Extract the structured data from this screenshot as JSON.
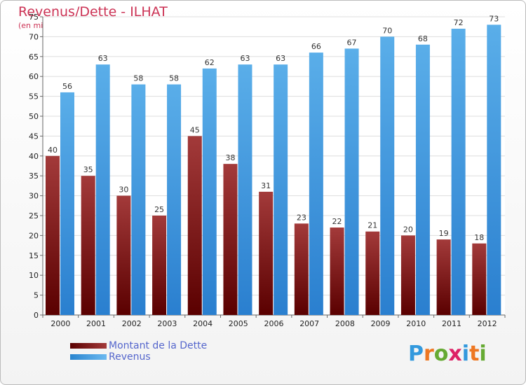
{
  "chart_data": {
    "type": "bar",
    "title": "Revenus/Dette - ILHAT",
    "subtitle": "(en milliers d'€)",
    "categories": [
      "2000",
      "2001",
      "2002",
      "2003",
      "2004",
      "2005",
      "2006",
      "2007",
      "2008",
      "2009",
      "2010",
      "2011",
      "2012"
    ],
    "series": [
      {
        "name": "Montant de la Dette",
        "values": [
          40,
          35,
          30,
          25,
          45,
          38,
          31,
          23,
          22,
          21,
          20,
          19,
          18
        ],
        "color": "#8b1a1a"
      },
      {
        "name": "Revenus",
        "values": [
          56,
          63,
          58,
          58,
          62,
          63,
          63,
          66,
          67,
          70,
          68,
          72,
          73
        ],
        "color": "#4aa3e8"
      }
    ],
    "ylim": [
      0,
      75
    ],
    "yticks": [
      0,
      5,
      10,
      15,
      20,
      25,
      30,
      35,
      40,
      45,
      50,
      55,
      60,
      65,
      70,
      75
    ],
    "grid": true,
    "legend": "bottom-left"
  },
  "logo": {
    "text": "Proxiti",
    "letters": [
      {
        "ch": "P",
        "color": "#3399dd"
      },
      {
        "ch": "r",
        "color": "#ee7722"
      },
      {
        "ch": "o",
        "color": "#66aa33"
      },
      {
        "ch": "x",
        "color": "#dd2266"
      },
      {
        "ch": "i",
        "color": "#3399dd"
      },
      {
        "ch": "t",
        "color": "#ee7722"
      },
      {
        "ch": "i",
        "color": "#66aa33"
      }
    ]
  }
}
